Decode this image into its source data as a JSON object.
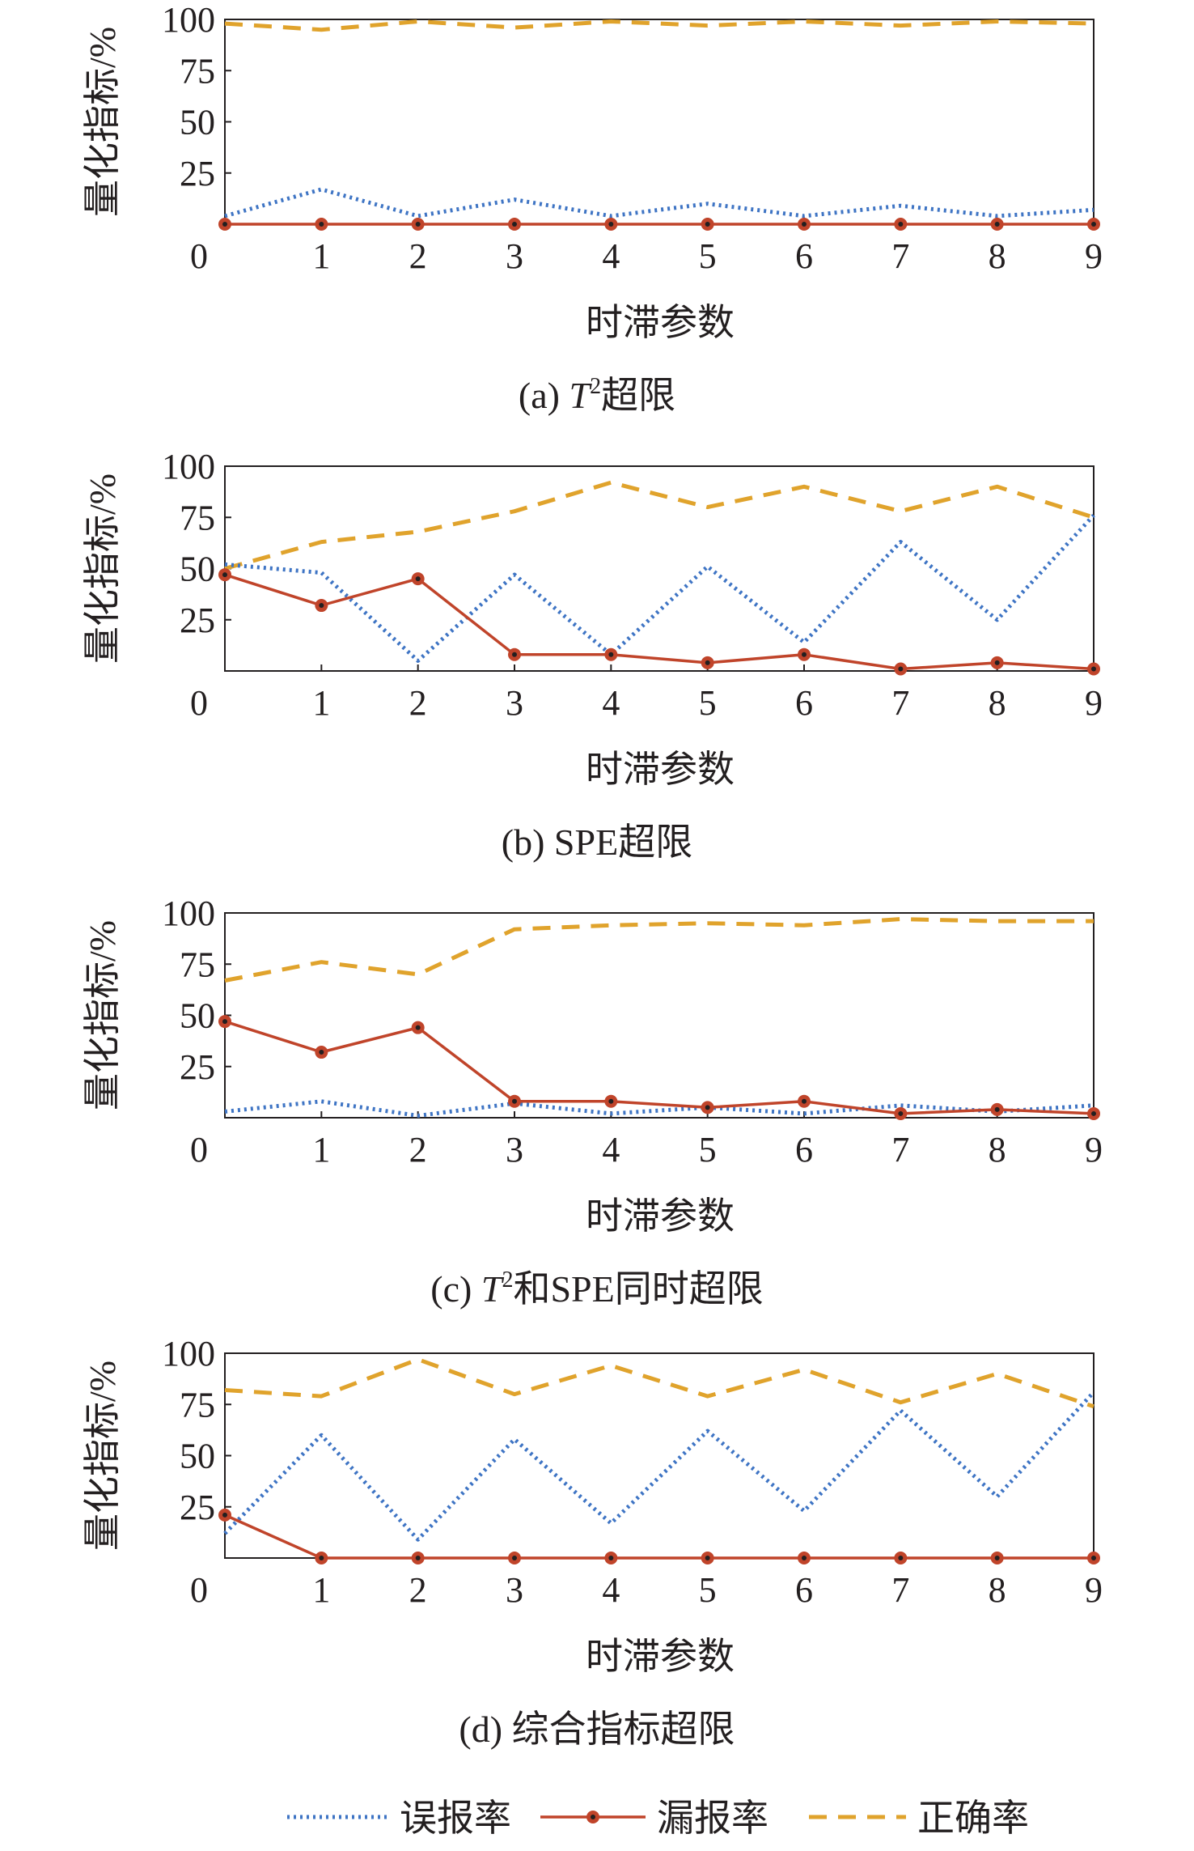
{
  "figure": {
    "legend": [
      {
        "label": "误报率",
        "color": "#3e74c4",
        "style": "dotted"
      },
      {
        "label": "漏报率",
        "color": "#c0442a",
        "style": "solid-marker"
      },
      {
        "label": "正确率",
        "color": "#e0a32c",
        "style": "dashed"
      }
    ]
  },
  "chart_data": [
    {
      "type": "line",
      "caption_prefix": "(a) ",
      "caption_italic": "T",
      "caption_sup": "2",
      "caption_suffix": "超限",
      "xlabel": "时滞参数",
      "ylabel": "量化指标/%",
      "x": [
        0,
        1,
        2,
        3,
        4,
        5,
        6,
        7,
        8,
        9
      ],
      "xlim": [
        0,
        9
      ],
      "ylim": [
        0,
        100
      ],
      "yticks": [
        25,
        50,
        75,
        100
      ],
      "grid": false,
      "series": [
        {
          "name": "误报率",
          "values": [
            4,
            17,
            4,
            12,
            4,
            10,
            4,
            9,
            4,
            7
          ]
        },
        {
          "name": "漏报率",
          "values": [
            0,
            0,
            0,
            0,
            0,
            0,
            0,
            0,
            0,
            0
          ]
        },
        {
          "name": "正确率",
          "values": [
            98,
            95,
            99,
            96,
            99,
            97,
            99,
            97,
            99,
            98
          ]
        }
      ]
    },
    {
      "type": "line",
      "caption_prefix": "(b) SPE超限",
      "caption_italic": "",
      "caption_sup": "",
      "caption_suffix": "",
      "xlabel": "时滞参数",
      "ylabel": "量化指标/%",
      "x": [
        0,
        1,
        2,
        3,
        4,
        5,
        6,
        7,
        8,
        9
      ],
      "xlim": [
        0,
        9
      ],
      "ylim": [
        0,
        100
      ],
      "yticks": [
        25,
        50,
        75,
        100
      ],
      "grid": false,
      "series": [
        {
          "name": "误报率",
          "values": [
            52,
            48,
            5,
            47,
            8,
            51,
            14,
            63,
            25,
            76
          ]
        },
        {
          "name": "漏报率",
          "values": [
            47,
            32,
            45,
            8,
            8,
            4,
            8,
            1,
            4,
            1
          ]
        },
        {
          "name": "正确率",
          "values": [
            50,
            63,
            68,
            78,
            92,
            80,
            90,
            78,
            90,
            75
          ]
        }
      ]
    },
    {
      "type": "line",
      "caption_prefix": "(c) ",
      "caption_italic": "T",
      "caption_sup": "2",
      "caption_suffix": "和SPE同时超限",
      "xlabel": "时滞参数",
      "ylabel": "量化指标/%",
      "x": [
        0,
        1,
        2,
        3,
        4,
        5,
        6,
        7,
        8,
        9
      ],
      "xlim": [
        0,
        9
      ],
      "ylim": [
        0,
        100
      ],
      "yticks": [
        25,
        50,
        75,
        100
      ],
      "grid": false,
      "series": [
        {
          "name": "误报率",
          "values": [
            3,
            8,
            1,
            7,
            2,
            5,
            2,
            6,
            3,
            6
          ]
        },
        {
          "name": "漏报率",
          "values": [
            47,
            32,
            44,
            8,
            8,
            5,
            8,
            2,
            4,
            2
          ]
        },
        {
          "name": "正确率",
          "values": [
            67,
            76,
            70,
            92,
            94,
            95,
            94,
            97,
            96,
            96
          ]
        }
      ]
    },
    {
      "type": "line",
      "caption_prefix": "(d) 综合指标超限",
      "caption_italic": "",
      "caption_sup": "",
      "caption_suffix": "",
      "xlabel": "时滞参数",
      "ylabel": "量化指标/%",
      "x": [
        0,
        1,
        2,
        3,
        4,
        5,
        6,
        7,
        8,
        9
      ],
      "xlim": [
        0,
        9
      ],
      "ylim": [
        0,
        100
      ],
      "yticks": [
        25,
        50,
        75,
        100
      ],
      "grid": false,
      "series": [
        {
          "name": "误报率",
          "values": [
            12,
            60,
            9,
            58,
            17,
            62,
            23,
            72,
            30,
            81
          ]
        },
        {
          "name": "漏报率",
          "values": [
            21,
            0,
            0,
            0,
            0,
            0,
            0,
            0,
            0,
            0
          ]
        },
        {
          "name": "正确率",
          "values": [
            82,
            79,
            97,
            80,
            94,
            79,
            92,
            76,
            90,
            74
          ]
        }
      ]
    }
  ]
}
